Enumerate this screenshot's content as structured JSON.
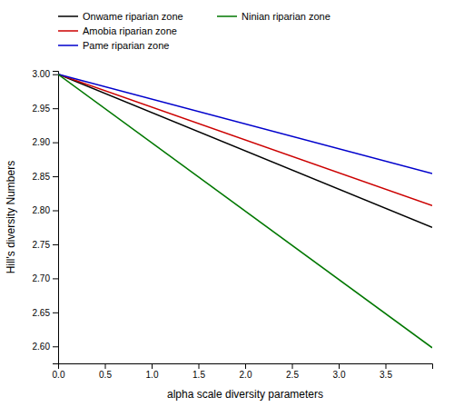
{
  "chart_data": {
    "type": "line",
    "xlabel": "alpha scale diversity parameters",
    "ylabel": "Hill's diversity Numbers",
    "x": [
      0.0,
      4.0
    ],
    "series": [
      {
        "name": "Onwame riparian zone",
        "color": "#000000",
        "values": [
          3.0,
          2.775
        ]
      },
      {
        "name": "Amobia riparian zone",
        "color": "#cc0000",
        "values": [
          3.0,
          2.807
        ]
      },
      {
        "name": "Pame riparian zone",
        "color": "#0000cc",
        "values": [
          3.0,
          2.854
        ]
      },
      {
        "name": "Ninian riparian zone",
        "color": "#007700",
        "values": [
          3.0,
          2.598
        ]
      }
    ],
    "xlim": [
      0.0,
      4.0
    ],
    "xticks": [
      {
        "value": 0.0,
        "label": "0.0"
      },
      0.5,
      {
        "value": 1.0,
        "label": "1.0"
      },
      1.5,
      {
        "value": 2.0,
        "label": "2.0"
      },
      2.5,
      {
        "value": 3.0,
        "label": "3.0"
      },
      3.5
    ],
    "ylim": [
      2.575,
      3.005
    ],
    "yticks": [
      {
        "value": 2.6,
        "label": "2.60"
      },
      2.65,
      {
        "value": 2.7,
        "label": "2.70"
      },
      2.75,
      {
        "value": 2.8,
        "label": "2.80"
      },
      2.85,
      {
        "value": 2.9,
        "label": "2.90"
      },
      2.95,
      {
        "value": 3.0,
        "label": "3.00"
      }
    ],
    "grid": false,
    "legend": "top"
  }
}
